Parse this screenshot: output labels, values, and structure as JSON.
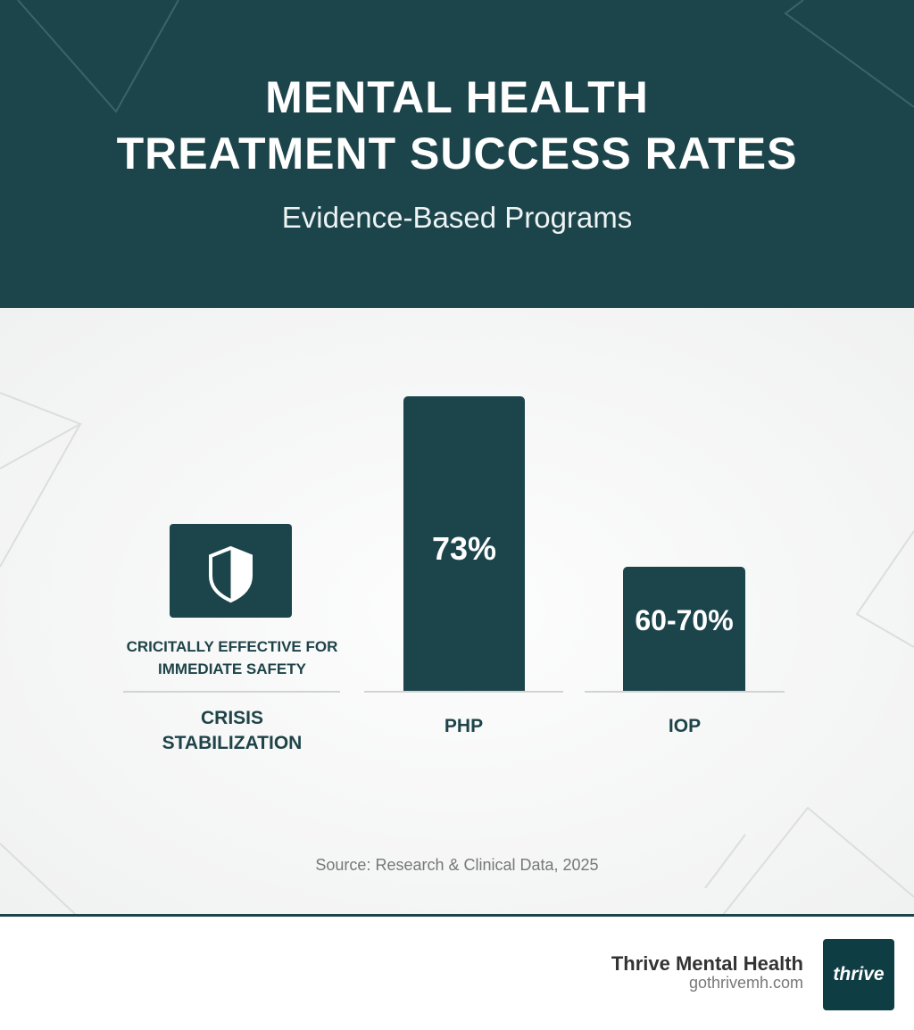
{
  "header": {
    "title_line1": "MENTAL HEALTH",
    "title_line2": "TREATMENT SUCCESS RATES",
    "subtitle": "Evidence-Based Programs"
  },
  "colors": {
    "primary": "#1c454b",
    "background": "#f4f5f5",
    "text": "#1e4449"
  },
  "chart_data": {
    "type": "bar",
    "title": "Mental Health Treatment Success Rates",
    "categories": [
      "CRISIS STABILIZATION",
      "PHP",
      "IOP"
    ],
    "values": [
      null,
      73,
      65
    ],
    "value_labels": [
      "",
      "73%",
      "60-70%"
    ],
    "annotations": {
      "crisis": "CRICITALLY EFFECTIVE FOR IMMEDIATE SAFETY",
      "crisis_icon": "shield-icon"
    },
    "cat_lines": [
      [
        "CRISIS",
        "STABILIZATION"
      ],
      [
        "PHP"
      ],
      [
        "IOP"
      ]
    ],
    "source": "Source: Research & Clinical Data, 2025"
  },
  "footer": {
    "brand": "Thrive Mental Health",
    "url": "gothrivemh.com",
    "logo_text": "thrive"
  }
}
